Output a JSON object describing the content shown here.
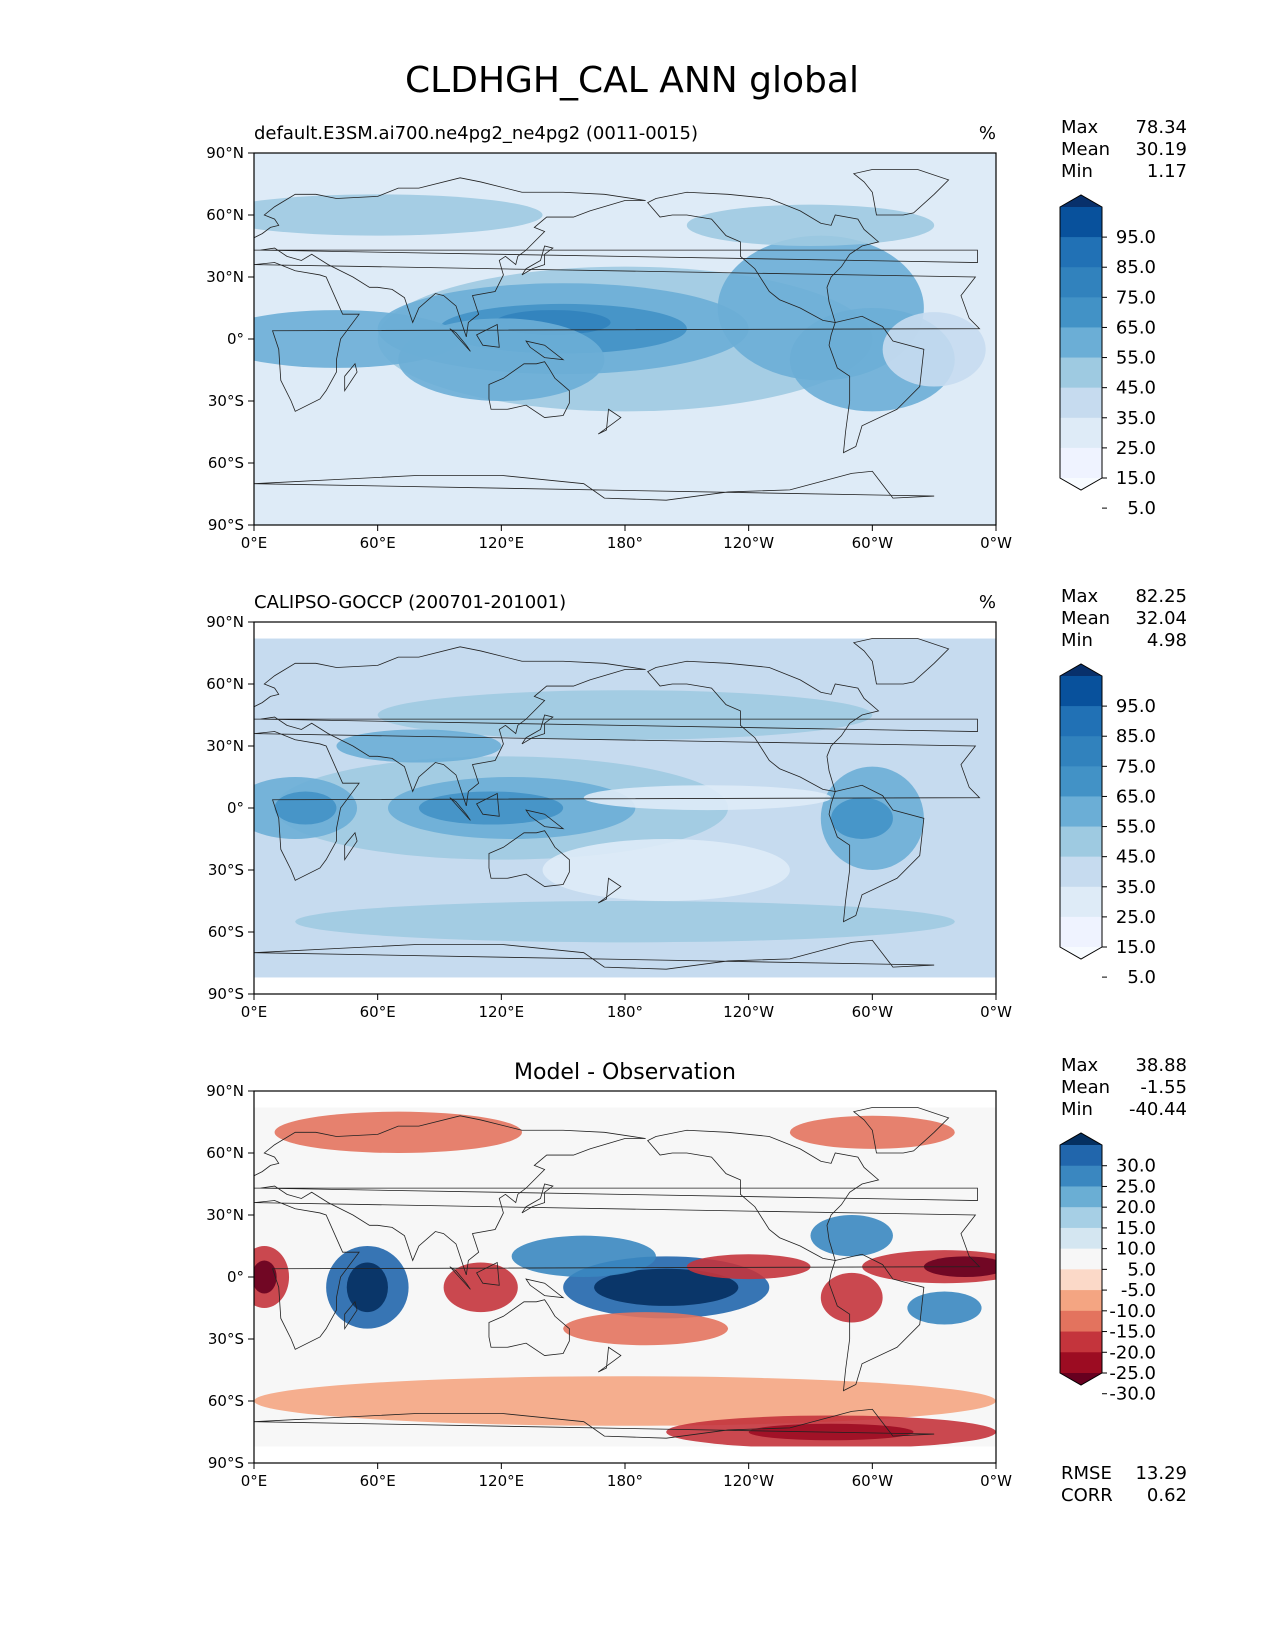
{
  "figure_title": "CLDHGH_CAL ANN global",
  "axes": {
    "lat_ticks": [
      "90°N",
      "60°N",
      "30°N",
      "0°",
      "30°S",
      "60°S",
      "90°S"
    ],
    "lon_ticks": [
      "0°E",
      "60°E",
      "120°E",
      "180°",
      "120°W",
      "60°W",
      "0°W"
    ]
  },
  "panels": [
    {
      "title_left": "default.E3SM.ai700.ne4pg2_ne4pg2 (0011-0015)",
      "title_center": "",
      "units": "%",
      "stats": [
        {
          "label": "Max",
          "value": "78.34"
        },
        {
          "label": "Mean",
          "value": "30.19"
        },
        {
          "label": "Min",
          "value": "1.17"
        }
      ],
      "colorbar_labels": [
        "95.0",
        "85.0",
        "75.0",
        "65.0",
        "55.0",
        "45.0",
        "35.0",
        "25.0",
        "15.0",
        "5.0"
      ],
      "colorbar_colors": [
        "#08306b",
        "#08519c",
        "#2171b5",
        "#3182bd",
        "#4292c6",
        "#6baed6",
        "#9ecae1",
        "#c6dbef",
        "#deebf7",
        "#eff3ff",
        "#f7fbff"
      ],
      "extra_stats": []
    },
    {
      "title_left": "CALIPSO-GOCCP (200701-201001)",
      "title_center": "",
      "units": "%",
      "stats": [
        {
          "label": "Max",
          "value": "82.25"
        },
        {
          "label": "Mean",
          "value": "32.04"
        },
        {
          "label": "Min",
          "value": "4.98"
        }
      ],
      "colorbar_labels": [
        "95.0",
        "85.0",
        "75.0",
        "65.0",
        "55.0",
        "45.0",
        "35.0",
        "25.0",
        "15.0",
        "5.0"
      ],
      "colorbar_colors": [
        "#08306b",
        "#08519c",
        "#2171b5",
        "#3182bd",
        "#4292c6",
        "#6baed6",
        "#9ecae1",
        "#c6dbef",
        "#deebf7",
        "#eff3ff",
        "#f7fbff"
      ],
      "extra_stats": []
    },
    {
      "title_left": "",
      "title_center": "Model - Observation",
      "units": "",
      "stats": [
        {
          "label": "Max",
          "value": "38.88"
        },
        {
          "label": "Mean",
          "value": "-1.55"
        },
        {
          "label": "Min",
          "value": "-40.44"
        }
      ],
      "colorbar_labels": [
        "30.0",
        "25.0",
        "20.0",
        "15.0",
        "10.0",
        "5.0",
        "-5.0",
        "-10.0",
        "-15.0",
        "-20.0",
        "-25.0",
        "-30.0"
      ],
      "colorbar_colors": [
        "#053061",
        "#2166ac",
        "#3a87c0",
        "#6aaed4",
        "#a6cfe5",
        "#d4e6f1",
        "#f7f7f7",
        "#fbd9c8",
        "#f4a582",
        "#e3735e",
        "#c4343c",
        "#9c0c22",
        "#67001f"
      ],
      "extra_stats": [
        {
          "label": "RMSE",
          "value": "13.29"
        },
        {
          "label": "CORR",
          "value": "0.62"
        }
      ]
    }
  ]
}
